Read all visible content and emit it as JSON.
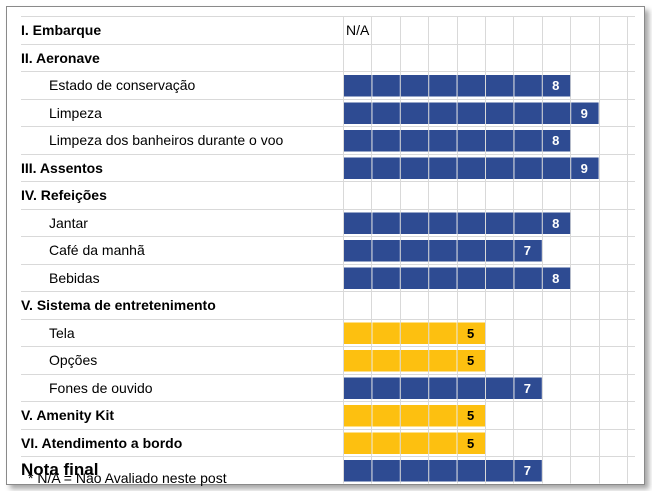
{
  "colors": {
    "bar_high": "#2e4b92",
    "bar_mid": "#fdc010",
    "label_on_dark": "#ffffff",
    "label_on_light": "#000000",
    "gridline": "#d9d9d9"
  },
  "chart_data": {
    "type": "bar",
    "orientation": "horizontal",
    "xlim": [
      0,
      10
    ],
    "grid": true,
    "rows": [
      {
        "label": "I. Embarque",
        "kind": "section",
        "value": null,
        "value_text": "N/A"
      },
      {
        "label": "II. Aeronave",
        "kind": "section",
        "value": null
      },
      {
        "label": "Estado de conservação",
        "kind": "item",
        "value": 8
      },
      {
        "label": "Limpeza",
        "kind": "item",
        "value": 9
      },
      {
        "label": "Limpeza dos banheiros durante o voo",
        "kind": "item",
        "value": 8
      },
      {
        "label": "III. Assentos",
        "kind": "section",
        "value": 9
      },
      {
        "label": "IV. Refeições",
        "kind": "section",
        "value": null
      },
      {
        "label": "Jantar",
        "kind": "item",
        "value": 8
      },
      {
        "label": "Café da manhã",
        "kind": "item",
        "value": 7
      },
      {
        "label": "Bebidas",
        "kind": "item",
        "value": 8
      },
      {
        "label": "V. Sistema de entretenimento",
        "kind": "section",
        "value": null
      },
      {
        "label": "Tela",
        "kind": "item",
        "value": 5
      },
      {
        "label": "Opções",
        "kind": "item",
        "value": 5
      },
      {
        "label": "Fones de ouvido",
        "kind": "item",
        "value": 7
      },
      {
        "label": "V. Amenity Kit",
        "kind": "section",
        "value": 5
      },
      {
        "label": "VI. Atendimento a bordo",
        "kind": "section",
        "value": 5
      },
      {
        "label": "Nota final",
        "kind": "final",
        "value": 7
      }
    ]
  },
  "footnote": "* N/A = Não Avaliado neste post"
}
